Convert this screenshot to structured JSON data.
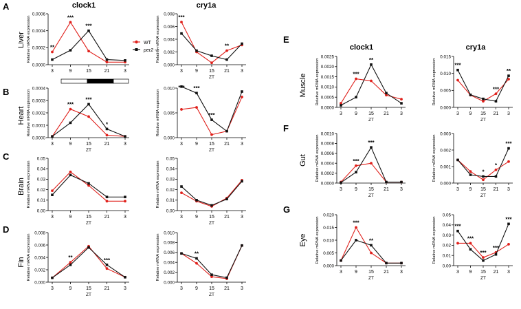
{
  "colors": {
    "wt": "#e0201b",
    "per2": "#111111",
    "axis": "#000000",
    "bar_light": "#ffffff",
    "bar_dark": "#000000"
  },
  "legend": {
    "wt_label": "WT",
    "per2_label": "per2 -/-"
  },
  "headers": {
    "left_clock1": "clock1",
    "left_cry1a": "cry1a",
    "right_clock1": "clock1",
    "right_cry1a": "cry1a"
  },
  "panels": [
    {
      "letter": "A",
      "tissue": "Liver"
    },
    {
      "letter": "B",
      "tissue": "Heart"
    },
    {
      "letter": "C",
      "tissue": "Brain"
    },
    {
      "letter": "D",
      "tissue": "Fin"
    },
    {
      "letter": "E",
      "tissue": "Muscle"
    },
    {
      "letter": "F",
      "tissue": "Gut"
    },
    {
      "letter": "G",
      "tissue": "Eye"
    }
  ],
  "ylabel": "Relative mRNA expression",
  "xlabel": "ZT",
  "x_ticks": [
    "3",
    "9",
    "15",
    "21",
    "3"
  ],
  "zt_bar": "light-dark-light",
  "chart_data": [
    {
      "id": "liver-clock1",
      "type": "line",
      "xlabel": "",
      "ylabel": "Relative mRNA expression",
      "categories": [
        "3",
        "9",
        "15",
        "21",
        "3"
      ],
      "ylim": [
        0,
        0.0006
      ],
      "yticks": [
        "0.0000",
        "0.0002",
        "0.0004",
        "0.0006"
      ],
      "series": [
        {
          "name": "WT",
          "values": [
            0.00015,
            0.0005,
            0.00016,
            3e-05,
            3e-05
          ]
        },
        {
          "name": "per2 -/-",
          "values": [
            6e-05,
            0.00017,
            0.0004,
            6e-05,
            5e-05
          ]
        }
      ],
      "stars": [
        {
          "i": 0,
          "text": "**"
        },
        {
          "i": 1,
          "text": "***"
        },
        {
          "i": 2,
          "text": "***"
        }
      ]
    },
    {
      "id": "liver-cry1a",
      "type": "line",
      "xlabel": "ZT",
      "ylabel": "Relative mRNA expression",
      "categories": [
        "3",
        "9",
        "15",
        "21",
        "3"
      ],
      "ylim": [
        0,
        0.008
      ],
      "yticks": [
        "0.000",
        "0.002",
        "0.004",
        "0.006",
        "0.008"
      ],
      "series": [
        {
          "name": "WT",
          "values": [
            0.0067,
            0.002,
            0.0003,
            0.0022,
            0.0031
          ]
        },
        {
          "name": "per2 -/-",
          "values": [
            0.0049,
            0.0022,
            0.0014,
            0.0008,
            0.0033
          ]
        }
      ],
      "stars": [
        {
          "i": 0,
          "text": "***"
        },
        {
          "i": 3,
          "text": "**"
        }
      ]
    },
    {
      "id": "heart-clock1",
      "type": "line",
      "xlabel": "ZT",
      "ylabel": "Relative mRNA expression",
      "categories": [
        "3",
        "9",
        "15",
        "21",
        "3"
      ],
      "ylim": [
        0,
        0.0004
      ],
      "yticks": [
        "0.0000",
        "0.0001",
        "0.0002",
        "0.0003",
        "0.0004"
      ],
      "series": [
        {
          "name": "WT",
          "values": [
            1e-05,
            0.00023,
            0.00017,
            2e-05,
            1e-05
          ]
        },
        {
          "name": "per2 -/-",
          "values": [
            1e-05,
            0.00012,
            0.00027,
            7e-05,
            1e-05
          ]
        }
      ],
      "stars": [
        {
          "i": 1,
          "text": "***"
        },
        {
          "i": 2,
          "text": "***"
        },
        {
          "i": 3,
          "text": "*"
        }
      ]
    },
    {
      "id": "heart-cry1a",
      "type": "line",
      "xlabel": "ZT",
      "ylabel": "Relative mRNA expression",
      "categories": [
        "3",
        "9",
        "15",
        "21",
        "3"
      ],
      "ylim": [
        0,
        0.01
      ],
      "yticks": [
        "0.000",
        "0.005",
        "0.010"
      ],
      "series": [
        {
          "name": "WT",
          "values": [
            0.0057,
            0.0061,
            0.0006,
            0.0013,
            0.0082
          ]
        },
        {
          "name": "per2 -/-",
          "values": [
            0.0103,
            0.009,
            0.0036,
            0.0013,
            0.0093
          ]
        }
      ],
      "stars": [
        {
          "i": 0,
          "text": "***"
        },
        {
          "i": 1,
          "text": "***"
        },
        {
          "i": 2,
          "text": "***"
        }
      ]
    },
    {
      "id": "brain-clock1",
      "type": "line",
      "xlabel": "ZT",
      "ylabel": "Relative mRNA expression",
      "categories": [
        "3",
        "9",
        "15",
        "21",
        "3"
      ],
      "ylim": [
        0,
        0.05
      ],
      "yticks": [
        "0.00",
        "0.01",
        "0.02",
        "0.03",
        "0.04",
        "0.05"
      ],
      "series": [
        {
          "name": "WT",
          "values": [
            0.019,
            0.037,
            0.024,
            0.009,
            0.009
          ]
        },
        {
          "name": "per2 -/-",
          "values": [
            0.015,
            0.034,
            0.026,
            0.013,
            0.013
          ]
        }
      ],
      "stars": []
    },
    {
      "id": "brain-cry1a",
      "type": "line",
      "xlabel": "ZT",
      "ylabel": "Relative mRNA expression",
      "categories": [
        "3",
        "9",
        "15",
        "21",
        "3"
      ],
      "ylim": [
        0,
        0.05
      ],
      "yticks": [
        "0.00",
        "0.01",
        "0.02",
        "0.03",
        "0.04",
        "0.05"
      ],
      "series": [
        {
          "name": "WT",
          "values": [
            0.017,
            0.009,
            0.004,
            0.012,
            0.029
          ]
        },
        {
          "name": "per2 -/-",
          "values": [
            0.023,
            0.01,
            0.005,
            0.011,
            0.028
          ]
        }
      ],
      "stars": []
    },
    {
      "id": "fin-clock1",
      "type": "line",
      "xlabel": "ZT",
      "ylabel": "Relative mRNA expression",
      "categories": [
        "3",
        "9",
        "15",
        "21",
        "3"
      ],
      "ylim": [
        0,
        0.008
      ],
      "yticks": [
        "0.000",
        "0.002",
        "0.004",
        "0.006",
        "0.008"
      ],
      "series": [
        {
          "name": "WT",
          "values": [
            0.0007,
            0.0032,
            0.0058,
            0.0022,
            0.0008
          ]
        },
        {
          "name": "per2 -/-",
          "values": [
            0.0007,
            0.0028,
            0.0056,
            0.0028,
            0.0008
          ]
        }
      ],
      "stars": [
        {
          "i": 1,
          "text": "**"
        },
        {
          "i": 3,
          "text": "***"
        }
      ]
    },
    {
      "id": "fin-cry1a",
      "type": "line",
      "xlabel": "ZT",
      "ylabel": "Relative mRNA expression",
      "categories": [
        "3",
        "9",
        "15",
        "21",
        "3"
      ],
      "ylim": [
        0,
        0.01
      ],
      "yticks": [
        "0.000",
        "0.002",
        "0.004",
        "0.006",
        "0.008",
        "0.010"
      ],
      "series": [
        {
          "name": "WT",
          "values": [
            0.0058,
            0.0038,
            0.0011,
            0.0007,
            0.0074
          ]
        },
        {
          "name": "per2 -/-",
          "values": [
            0.0058,
            0.0048,
            0.0015,
            0.0009,
            0.0074
          ]
        }
      ],
      "stars": [
        {
          "i": 1,
          "text": "**"
        }
      ]
    },
    {
      "id": "muscle-clock1",
      "type": "line",
      "xlabel": "ZT",
      "ylabel": "Relative mRNA expression",
      "categories": [
        "3",
        "9",
        "15",
        "21",
        "3"
      ],
      "ylim": [
        0,
        0.0025
      ],
      "yticks": [
        "0.0000",
        "0.0005",
        "0.0010",
        "0.0015",
        "0.0020",
        "0.0025"
      ],
      "series": [
        {
          "name": "WT",
          "values": [
            0.0002,
            0.0014,
            0.0013,
            0.0006,
            0.0004
          ]
        },
        {
          "name": "per2 -/-",
          "values": [
            0.0001,
            0.0005,
            0.0021,
            0.0007,
            0.0002
          ]
        }
      ],
      "stars": [
        {
          "i": 1,
          "text": "***"
        },
        {
          "i": 2,
          "text": "**"
        }
      ]
    },
    {
      "id": "muscle-cry1a",
      "type": "line",
      "xlabel": "ZT",
      "ylabel": "Relative mRNA expression",
      "categories": [
        "3",
        "9",
        "15",
        "21",
        "3"
      ],
      "ylim": [
        0,
        0.015
      ],
      "yticks": [
        "0.000",
        "0.005",
        "0.010",
        "0.015"
      ],
      "series": [
        {
          "name": "WT",
          "values": [
            0.008,
            0.0036,
            0.0018,
            0.004,
            0.0083
          ]
        },
        {
          "name": "per2 -/-",
          "values": [
            0.011,
            0.0037,
            0.0025,
            0.0018,
            0.0093
          ]
        }
      ],
      "stars": [
        {
          "i": 0,
          "text": "***"
        },
        {
          "i": 3,
          "text": "***"
        },
        {
          "i": 4,
          "text": "**"
        }
      ]
    },
    {
      "id": "gut-clock1",
      "type": "line",
      "xlabel": "ZT",
      "ylabel": "Relative mRNA expression",
      "categories": [
        "3",
        "9",
        "15",
        "21",
        "3"
      ],
      "ylim": [
        0,
        0.001
      ],
      "yticks": [
        "0.0000",
        "0.0002",
        "0.0004",
        "0.0006",
        "0.0008",
        "0.0010"
      ],
      "series": [
        {
          "name": "WT",
          "values": [
            2e-05,
            0.00035,
            0.0004,
            2e-05,
            2e-05
          ]
        },
        {
          "name": "per2 -/-",
          "values": [
            1e-05,
            0.00022,
            0.00072,
            2e-05,
            2e-05
          ]
        }
      ],
      "stars": [
        {
          "i": 1,
          "text": "***"
        },
        {
          "i": 2,
          "text": "***"
        }
      ]
    },
    {
      "id": "gut-cry1a",
      "type": "line",
      "xlabel": "ZT",
      "ylabel": "Relative mRNA expression",
      "categories": [
        "3",
        "9",
        "15",
        "21",
        "3"
      ],
      "ylim": [
        0,
        0.003
      ],
      "yticks": [
        "0.000",
        "0.001",
        "0.002",
        "0.003"
      ],
      "series": [
        {
          "name": "WT",
          "values": [
            0.0014,
            0.0007,
            0.0002,
            0.0008,
            0.0013
          ]
        },
        {
          "name": "per2 -/-",
          "values": [
            0.0014,
            0.0005,
            0.0004,
            0.0004,
            0.0021
          ]
        }
      ],
      "stars": [
        {
          "i": 2,
          "text": "*"
        },
        {
          "i": 3,
          "text": "*"
        },
        {
          "i": 4,
          "text": "***"
        }
      ]
    },
    {
      "id": "eye-clock1",
      "type": "line",
      "xlabel": "ZT",
      "ylabel": "Relative mRNA expression",
      "categories": [
        "3",
        "9",
        "15",
        "21",
        "3"
      ],
      "ylim": [
        0,
        0.02
      ],
      "yticks": [
        "0.000",
        "0.005",
        "0.010",
        "0.015",
        "0.020"
      ],
      "series": [
        {
          "name": "WT",
          "values": [
            0.002,
            0.015,
            0.005,
            0.001,
            0.001
          ]
        },
        {
          "name": "per2 -/-",
          "values": [
            0.002,
            0.01,
            0.008,
            0.001,
            0.001
          ]
        }
      ],
      "stars": [
        {
          "i": 1,
          "text": "***"
        },
        {
          "i": 2,
          "text": "**"
        }
      ]
    },
    {
      "id": "eye-cry1a",
      "type": "line",
      "xlabel": "ZT",
      "ylabel": "Relative mRNA expression",
      "categories": [
        "3",
        "9",
        "15",
        "21",
        "3"
      ],
      "ylim": [
        0,
        0.05
      ],
      "yticks": [
        "0.00",
        "0.01",
        "0.02",
        "0.03",
        "0.04",
        "0.05"
      ],
      "series": [
        {
          "name": "WT",
          "values": [
            0.022,
            0.022,
            0.008,
            0.013,
            0.021
          ]
        },
        {
          "name": "per2 -/-",
          "values": [
            0.034,
            0.016,
            0.005,
            0.011,
            0.041
          ]
        }
      ],
      "stars": [
        {
          "i": 0,
          "text": "***"
        },
        {
          "i": 1,
          "text": "***"
        },
        {
          "i": 2,
          "text": "***"
        },
        {
          "i": 3,
          "text": "***"
        },
        {
          "i": 4,
          "text": "***"
        }
      ]
    }
  ]
}
